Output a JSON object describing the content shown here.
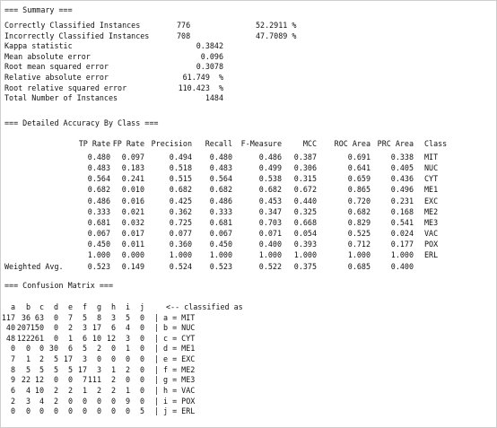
{
  "summary_header": "=== Summary ===",
  "summary": [
    {
      "label": "Correctly Classified Instances",
      "v1": "776",
      "v2": "52.2911 %"
    },
    {
      "label": "Incorrectly Classified Instances",
      "v1": "708",
      "v2": "47.7089 %"
    },
    {
      "label": "Kappa statistic",
      "v1": "0.3842",
      "v2": ""
    },
    {
      "label": "Mean absolute error",
      "v1": "0.096",
      "v2": ""
    },
    {
      "label": "Root mean squared error",
      "v1": "0.3078",
      "v2": ""
    },
    {
      "label": "Relative absolute error",
      "v1": "61.749  %",
      "v2": ""
    },
    {
      "label": "Root relative squared error",
      "v1": "110.423  %",
      "v2": ""
    },
    {
      "label": "Total Number of Instances",
      "v1": "1484",
      "v2": ""
    }
  ],
  "accuracy_header": "=== Detailed Accuracy By Class ===",
  "accuracy_columns": [
    "TP Rate",
    "FP Rate",
    "Precision",
    "Recall",
    "F-Measure",
    "MCC",
    "ROC Area",
    "PRC Area",
    "Class"
  ],
  "accuracy_rows": [
    [
      "0.480",
      "0.097",
      "0.494",
      "0.480",
      "0.486",
      "0.387",
      "0.691",
      "0.338",
      "MIT"
    ],
    [
      "0.483",
      "0.183",
      "0.518",
      "0.483",
      "0.499",
      "0.306",
      "0.641",
      "0.405",
      "NUC"
    ],
    [
      "0.564",
      "0.241",
      "0.515",
      "0.564",
      "0.538",
      "0.315",
      "0.659",
      "0.436",
      "CYT"
    ],
    [
      "0.682",
      "0.010",
      "0.682",
      "0.682",
      "0.682",
      "0.672",
      "0.865",
      "0.496",
      "ME1"
    ],
    [
      "0.486",
      "0.016",
      "0.425",
      "0.486",
      "0.453",
      "0.440",
      "0.720",
      "0.231",
      "EXC"
    ],
    [
      "0.333",
      "0.021",
      "0.362",
      "0.333",
      "0.347",
      "0.325",
      "0.682",
      "0.168",
      "ME2"
    ],
    [
      "0.681",
      "0.032",
      "0.725",
      "0.681",
      "0.703",
      "0.668",
      "0.829",
      "0.541",
      "ME3"
    ],
    [
      "0.067",
      "0.017",
      "0.077",
      "0.067",
      "0.071",
      "0.054",
      "0.525",
      "0.024",
      "VAC"
    ],
    [
      "0.450",
      "0.011",
      "0.360",
      "0.450",
      "0.400",
      "0.393",
      "0.712",
      "0.177",
      "POX"
    ],
    [
      "1.000",
      "0.000",
      "1.000",
      "1.000",
      "1.000",
      "1.000",
      "1.000",
      "1.000",
      "ERL"
    ]
  ],
  "weighted_label": "Weighted Avg.",
  "weighted_row": [
    "0.523",
    "0.149",
    "0.524",
    "0.523",
    "0.522",
    "0.375",
    "0.685",
    "0.400"
  ],
  "confusion_header": "=== Confusion Matrix ===",
  "confusion_columns": [
    "a",
    "b",
    "c",
    "d",
    "e",
    "f",
    "g",
    "h",
    "i",
    "j"
  ],
  "confusion_caption": "<-- classified as",
  "confusion_rows": [
    {
      "values": [
        "117",
        "36",
        "63",
        "0",
        "7",
        "5",
        "8",
        "3",
        "5",
        "0"
      ],
      "label": "a = MIT"
    },
    {
      "values": [
        "40",
        "207",
        "150",
        "0",
        "2",
        "3",
        "17",
        "6",
        "4",
        "0"
      ],
      "label": "b = NUC"
    },
    {
      "values": [
        "48",
        "122",
        "261",
        "0",
        "1",
        "6",
        "10",
        "12",
        "3",
        "0"
      ],
      "label": "c = CYT"
    },
    {
      "values": [
        "0",
        "0",
        "0",
        "30",
        "6",
        "5",
        "2",
        "0",
        "1",
        "0"
      ],
      "label": "d = ME1"
    },
    {
      "values": [
        "7",
        "1",
        "2",
        "5",
        "17",
        "3",
        "0",
        "0",
        "0",
        "0"
      ],
      "label": "e = EXC"
    },
    {
      "values": [
        "8",
        "5",
        "5",
        "5",
        "5",
        "17",
        "3",
        "1",
        "2",
        "0"
      ],
      "label": "f = ME2"
    },
    {
      "values": [
        "9",
        "22",
        "12",
        "0",
        "0",
        "7",
        "111",
        "2",
        "0",
        "0"
      ],
      "label": "g = ME3"
    },
    {
      "values": [
        "6",
        "4",
        "10",
        "2",
        "2",
        "1",
        "2",
        "2",
        "1",
        "0"
      ],
      "label": "h = VAC"
    },
    {
      "values": [
        "2",
        "3",
        "4",
        "2",
        "0",
        "0",
        "0",
        "0",
        "9",
        "0"
      ],
      "label": "i = POX"
    },
    {
      "values": [
        "0",
        "0",
        "0",
        "0",
        "0",
        "0",
        "0",
        "0",
        "0",
        "5"
      ],
      "label": "j = ERL"
    }
  ],
  "confusion_separator": "|"
}
